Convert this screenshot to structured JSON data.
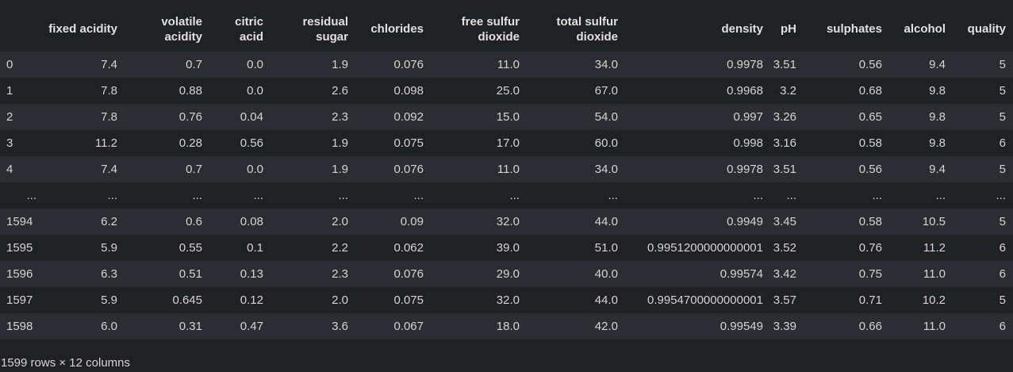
{
  "dataframe": {
    "columns": [
      "",
      "fixed acidity",
      "volatile acidity",
      "citric acid",
      "residual sugar",
      "chlorides",
      "free sulfur dioxide",
      "total sulfur dioxide",
      "density",
      "pH",
      "sulphates",
      "alcohol",
      "quality"
    ],
    "rows": [
      {
        "index": "0",
        "cells": [
          "7.4",
          "0.7",
          "0.0",
          "1.9",
          "0.076",
          "11.0",
          "34.0",
          "0.9978",
          "3.51",
          "0.56",
          "9.4",
          "5"
        ]
      },
      {
        "index": "1",
        "cells": [
          "7.8",
          "0.88",
          "0.0",
          "2.6",
          "0.098",
          "25.0",
          "67.0",
          "0.9968",
          "3.2",
          "0.68",
          "9.8",
          "5"
        ]
      },
      {
        "index": "2",
        "cells": [
          "7.8",
          "0.76",
          "0.04",
          "2.3",
          "0.092",
          "15.0",
          "54.0",
          "0.997",
          "3.26",
          "0.65",
          "9.8",
          "5"
        ]
      },
      {
        "index": "3",
        "cells": [
          "11.2",
          "0.28",
          "0.56",
          "1.9",
          "0.075",
          "17.0",
          "60.0",
          "0.998",
          "3.16",
          "0.58",
          "9.8",
          "6"
        ]
      },
      {
        "index": "4",
        "cells": [
          "7.4",
          "0.7",
          "0.0",
          "1.9",
          "0.076",
          "11.0",
          "34.0",
          "0.9978",
          "3.51",
          "0.56",
          "9.4",
          "5"
        ]
      },
      {
        "index": "...",
        "cells": [
          "...",
          "...",
          "...",
          "...",
          "...",
          "...",
          "...",
          "...",
          "...",
          "...",
          "...",
          "..."
        ]
      },
      {
        "index": "1594",
        "cells": [
          "6.2",
          "0.6",
          "0.08",
          "2.0",
          "0.09",
          "32.0",
          "44.0",
          "0.9949",
          "3.45",
          "0.58",
          "10.5",
          "5"
        ]
      },
      {
        "index": "1595",
        "cells": [
          "5.9",
          "0.55",
          "0.1",
          "2.2",
          "0.062",
          "39.0",
          "51.0",
          "0.9951200000000001",
          "3.52",
          "0.76",
          "11.2",
          "6"
        ]
      },
      {
        "index": "1596",
        "cells": [
          "6.3",
          "0.51",
          "0.13",
          "2.3",
          "0.076",
          "29.0",
          "40.0",
          "0.99574",
          "3.42",
          "0.75",
          "11.0",
          "6"
        ]
      },
      {
        "index": "1597",
        "cells": [
          "5.9",
          "0.645",
          "0.12",
          "2.0",
          "0.075",
          "32.0",
          "44.0",
          "0.9954700000000001",
          "3.57",
          "0.71",
          "10.2",
          "5"
        ]
      },
      {
        "index": "1598",
        "cells": [
          "6.0",
          "0.31",
          "0.47",
          "3.6",
          "0.067",
          "18.0",
          "42.0",
          "0.99549",
          "3.39",
          "0.66",
          "11.0",
          "6"
        ]
      }
    ],
    "footer": "1599 rows × 12 columns"
  },
  "colors": {
    "background": "#1f2124",
    "row_stripe": "#2a2d31",
    "text": "#d4d4d4"
  }
}
